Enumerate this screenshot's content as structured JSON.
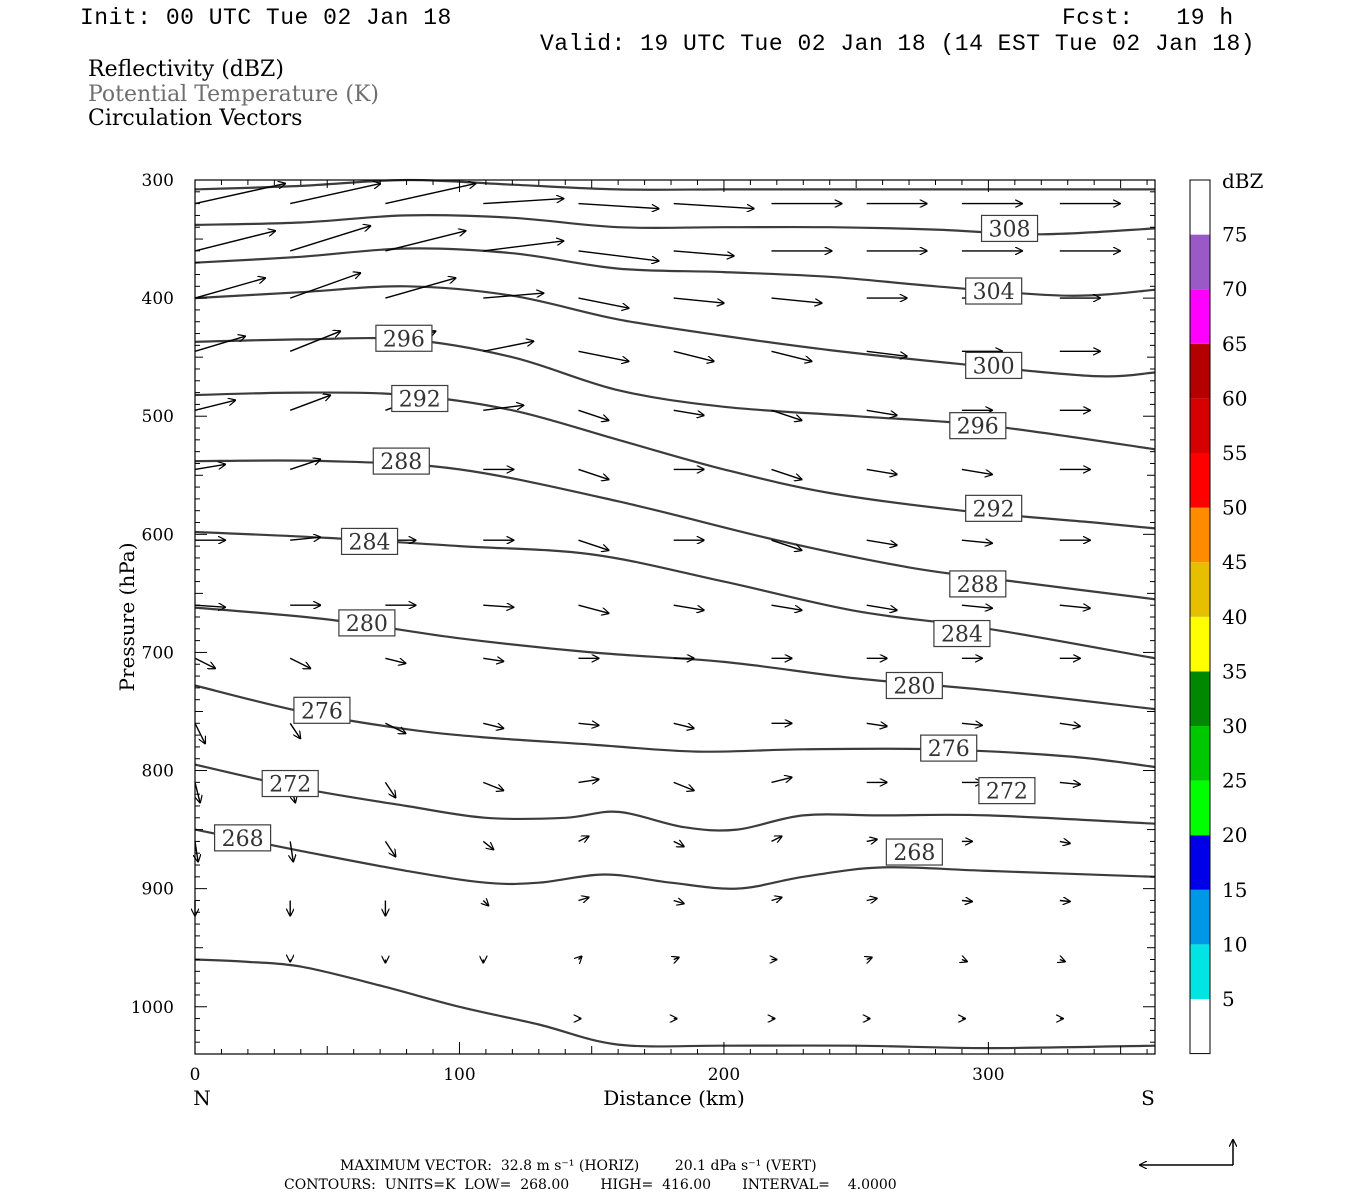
{
  "header": {
    "init": "Init: 00 UTC Tue 02 Jan 18",
    "fcst": "Fcst:   19 h",
    "valid": "Valid: 19 UTC Tue 02 Jan 18 (14 EST Tue 02 Jan 18)",
    "field1": "Reflectivity (dBZ)",
    "field2": "Potential Temperature (K)",
    "field3": "Circulation Vectors"
  },
  "footer": {
    "line1": "MAXIMUM VECTOR:  32.8 m s⁻¹ (HORIZ)        20.1 dPa s⁻¹ (VERT)",
    "line2": "CONTOURS:  UNITS=K  LOW=  268.00       HIGH=  416.00       INTERVAL=    4.0000"
  },
  "colors": {
    "contour": "#3c3c3c",
    "vector": "#000000",
    "label_box": "#3c3c3c"
  },
  "chart_data": {
    "type": "contour",
    "xlabel": "Distance (km)",
    "ylabel": "Pressure (hPa)",
    "xlim": [
      0,
      363
    ],
    "ylim": [
      1040,
      300
    ],
    "xticks": [
      0,
      100,
      200,
      300
    ],
    "yticks": [
      300,
      400,
      500,
      600,
      700,
      800,
      900,
      1000
    ],
    "x_end_labels": [
      "N",
      "S"
    ],
    "colorbar": {
      "title": "dBZ",
      "labels": [
        "5",
        "10",
        "15",
        "20",
        "25",
        "30",
        "35",
        "40",
        "45",
        "50",
        "55",
        "60",
        "65",
        "70",
        "75"
      ],
      "colors": [
        "#ffffff",
        "#00e4e4",
        "#0098e6",
        "#0000e8",
        "#00ff00",
        "#00c800",
        "#008800",
        "#ffff00",
        "#e6c000",
        "#ff8c00",
        "#ff0000",
        "#d60000",
        "#b40000",
        "#ff00ff",
        "#9b59c8",
        "#ffffff"
      ]
    },
    "isentropes": [
      {
        "theta": "268",
        "x": [
          0,
          40,
          80,
          110,
          130,
          155,
          180,
          205,
          230,
          260,
          300,
          363
        ],
        "p": [
          850,
          868,
          885,
          895,
          895,
          888,
          895,
          900,
          890,
          882,
          885,
          890
        ],
        "labels": [
          [
            18,
            857
          ],
          [
            272,
            869
          ]
        ]
      },
      {
        "theta": "272",
        "x": [
          0,
          40,
          80,
          110,
          140,
          160,
          185,
          205,
          230,
          260,
          300,
          363
        ],
        "p": [
          795,
          815,
          830,
          840,
          840,
          835,
          848,
          850,
          838,
          838,
          838,
          845
        ],
        "labels": [
          [
            36,
            811
          ],
          [
            307,
            817
          ]
        ]
      },
      {
        "theta": "276",
        "x": [
          0,
          40,
          80,
          110,
          150,
          190,
          230,
          280,
          330,
          363
        ],
        "p": [
          728,
          750,
          765,
          772,
          778,
          784,
          782,
          782,
          788,
          797
        ],
        "labels": [
          [
            48,
            749
          ],
          [
            285,
            781
          ]
        ]
      },
      {
        "theta": "280",
        "x": [
          0,
          50,
          100,
          150,
          200,
          250,
          300,
          363
        ],
        "p": [
          662,
          672,
          688,
          700,
          708,
          722,
          732,
          748
        ],
        "labels": [
          [
            65,
            675
          ],
          [
            272,
            728
          ]
        ]
      },
      {
        "theta": "284",
        "x": [
          0,
          50,
          100,
          150,
          200,
          250,
          300,
          363
        ],
        "p": [
          598,
          603,
          610,
          617,
          640,
          665,
          680,
          705
        ],
        "labels": [
          [
            66,
            606
          ],
          [
            290,
            684
          ]
        ]
      },
      {
        "theta": "288",
        "x": [
          0,
          50,
          100,
          160,
          220,
          270,
          310,
          363
        ],
        "p": [
          538,
          538,
          545,
          572,
          605,
          628,
          640,
          655
        ],
        "labels": [
          [
            78,
            538
          ],
          [
            296,
            642
          ]
        ]
      },
      {
        "theta": "292",
        "x": [
          0,
          40,
          80,
          120,
          160,
          200,
          240,
          290,
          340,
          363
        ],
        "p": [
          482,
          480,
          482,
          495,
          520,
          545,
          565,
          580,
          590,
          595
        ],
        "labels": [
          [
            85,
            485
          ],
          [
            302,
            578
          ]
        ]
      },
      {
        "theta": "296",
        "x": [
          0,
          40,
          80,
          120,
          160,
          200,
          250,
          300,
          363
        ],
        "p": [
          437,
          435,
          435,
          450,
          478,
          492,
          500,
          508,
          528
        ],
        "labels": [
          [
            79,
            434
          ],
          [
            296,
            508
          ]
        ]
      },
      {
        "theta": "300",
        "x": [
          0,
          40,
          80,
          120,
          160,
          200,
          240,
          290,
          340,
          363
        ],
        "p": [
          400,
          395,
          390,
          398,
          418,
          432,
          444,
          456,
          466,
          463
        ],
        "labels": [
          [
            302,
            457
          ]
        ]
      },
      {
        "theta": "304",
        "x": [
          0,
          40,
          80,
          120,
          160,
          200,
          240,
          280,
          330,
          363
        ],
        "p": [
          370,
          365,
          358,
          362,
          375,
          378,
          382,
          390,
          398,
          393
        ],
        "labels": [
          [
            302,
            394
          ]
        ]
      },
      {
        "theta": "308",
        "x": [
          0,
          40,
          80,
          120,
          160,
          200,
          240,
          280,
          320,
          363
        ],
        "p": [
          338,
          336,
          330,
          332,
          340,
          340,
          340,
          342,
          346,
          341
        ],
        "labels": [
          [
            308,
            341
          ]
        ]
      },
      {
        "theta": "",
        "x": [
          0,
          40,
          80,
          120,
          160,
          200,
          240,
          280,
          320,
          363
        ],
        "p": [
          308,
          305,
          300,
          304,
          308,
          308,
          308,
          308,
          308,
          308
        ],
        "labels": []
      },
      {
        "theta": "",
        "x": [
          0,
          20,
          40,
          70,
          100,
          130,
          160,
          200,
          250,
          300,
          363
        ],
        "p": [
          960,
          962,
          966,
          982,
          1000,
          1015,
          1032,
          1033,
          1033,
          1035,
          1033
        ],
        "labels": []
      }
    ],
    "vectors": {
      "x_rows": [
        0,
        36,
        72,
        109,
        145,
        181,
        218,
        254,
        290,
        327
      ],
      "p_rows": [
        320,
        360,
        400,
        445,
        495,
        545,
        605,
        660,
        705,
        760,
        810,
        860,
        910,
        960,
        1010
      ],
      "u": [
        [
          9,
          9,
          9,
          8,
          8,
          8,
          7,
          6,
          6,
          6
        ],
        [
          8,
          8,
          8,
          8,
          8,
          6,
          6,
          6,
          6,
          6
        ],
        [
          7,
          7,
          7,
          6,
          5,
          5,
          5,
          4,
          4,
          4
        ],
        [
          5,
          5,
          5,
          5,
          5,
          4,
          4,
          4,
          4,
          4
        ],
        [
          4,
          4,
          4,
          4,
          3,
          3,
          3,
          3,
          3,
          3
        ],
        [
          3,
          3,
          3,
          3,
          3,
          3,
          3,
          3,
          3,
          3
        ],
        [
          3,
          3,
          3,
          3,
          3,
          3,
          3,
          3,
          3,
          3
        ],
        [
          3,
          3,
          3,
          3,
          3,
          3,
          3,
          3,
          3,
          3
        ],
        [
          2,
          2,
          2,
          2,
          2,
          2,
          2,
          2,
          2,
          2
        ],
        [
          1,
          1,
          2,
          2,
          2,
          2,
          2,
          2,
          2,
          2
        ],
        [
          0.5,
          0.5,
          1,
          2,
          2,
          2,
          2,
          2,
          2,
          2
        ],
        [
          0.3,
          0.3,
          1,
          1,
          1,
          1,
          1,
          1,
          1,
          1
        ],
        [
          0,
          0,
          0,
          0.5,
          1,
          1,
          1,
          1,
          1,
          1
        ],
        [
          0,
          0,
          0,
          0,
          0.3,
          0.5,
          0.5,
          0.5,
          0.5,
          0.5
        ],
        [
          0,
          0,
          0,
          0,
          0.2,
          0.3,
          0.3,
          0.3,
          0.3,
          0.3
        ]
      ],
      "w": [
        [
          2,
          2,
          2,
          0.5,
          -0.5,
          -0.5,
          0,
          0,
          0,
          0
        ],
        [
          2,
          2.5,
          2,
          1,
          -1,
          -0.5,
          0,
          0,
          0,
          0
        ],
        [
          2,
          2.5,
          2,
          0.5,
          -1,
          -0.5,
          -0.5,
          0,
          0,
          0
        ],
        [
          1.5,
          2,
          2,
          1,
          -1,
          -1,
          -1,
          -0.5,
          0,
          0
        ],
        [
          1,
          1.5,
          1.5,
          0.5,
          -1,
          -0.5,
          -1,
          -0.5,
          0,
          0
        ],
        [
          0.5,
          1,
          1,
          0,
          -1,
          0,
          -1,
          -0.5,
          -0.5,
          0
        ],
        [
          0,
          0.3,
          0,
          0,
          -1,
          0,
          -1,
          -0.5,
          -0.3,
          0
        ],
        [
          -0.2,
          0,
          0,
          -0.2,
          -0.8,
          -0.5,
          -0.5,
          -0.5,
          -0.3,
          -0.3
        ],
        [
          -1,
          -1,
          -0.5,
          -0.3,
          0,
          0,
          0,
          0,
          0,
          0
        ],
        [
          -2,
          -1.5,
          -1,
          -0.5,
          -0.2,
          -0.5,
          0,
          -0.3,
          -0.2,
          -0.3
        ],
        [
          -2,
          -2,
          -1.5,
          -0.8,
          0.3,
          -0.8,
          0.5,
          0,
          0,
          -0.2
        ],
        [
          -2,
          -2,
          -1.5,
          -0.8,
          0.5,
          -0.5,
          0.5,
          0.2,
          0,
          -0.2
        ],
        [
          -1.5,
          -1.5,
          -1.5,
          -0.5,
          0.3,
          -0.3,
          0.3,
          0.2,
          -0.1,
          -0.1
        ],
        [
          0,
          -0.2,
          -0.3,
          -0.3,
          0.3,
          0.2,
          0,
          0.2,
          -0.2,
          -0.2
        ],
        [
          0,
          0,
          0,
          0,
          0,
          0,
          0,
          0,
          0,
          0
        ]
      ]
    }
  }
}
